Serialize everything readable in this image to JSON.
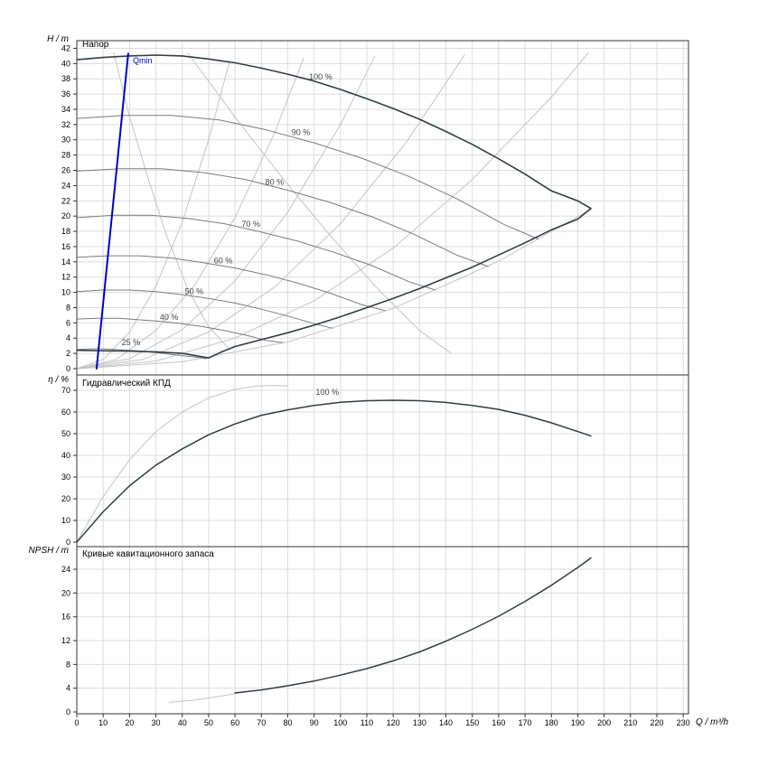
{
  "labels": {
    "qmin": "Qmin"
  },
  "colors": {
    "dark": "#2f3f46",
    "mid": "#7c7c7c",
    "light": "#c4c4c4",
    "blue": "#0000cc",
    "grid": "#dcdcdc",
    "axis": "#333333",
    "text": "#000000",
    "annotation": "#444444"
  },
  "xaxis": {
    "label": "Q / m³/h",
    "xlim": [
      0,
      232
    ],
    "tick_step": 10,
    "tick_max": 230
  },
  "chart_data": [
    {
      "type": "line",
      "title": "Напор",
      "ylabel": "H / m",
      "ylim": [
        0,
        43
      ],
      "yticks_step": 2,
      "yticks_max": 42,
      "grid": true,
      "series": [
        {
          "name": "iso-curve-1",
          "color": "light",
          "width": 1,
          "points": [
            [
              0,
              0
            ],
            [
              10,
              1.2
            ],
            [
              20,
              4.8
            ],
            [
              30,
              10.8
            ],
            [
              40,
              19.2
            ],
            [
              50,
              30.0
            ],
            [
              58,
              40.4
            ]
          ]
        },
        {
          "name": "iso-curve-2",
          "color": "light",
          "width": 1,
          "points": [
            [
              0,
              0
            ],
            [
              15,
              1.2
            ],
            [
              30,
              5.0
            ],
            [
              45,
              11.1
            ],
            [
              60,
              19.8
            ],
            [
              75,
              30.9
            ],
            [
              86,
              40.7
            ]
          ]
        },
        {
          "name": "iso-curve-3",
          "color": "light",
          "width": 1,
          "points": [
            [
              0,
              0
            ],
            [
              20,
              1.3
            ],
            [
              40,
              5.1
            ],
            [
              60,
              11.5
            ],
            [
              80,
              20.5
            ],
            [
              100,
              32.0
            ],
            [
              113,
              40.9
            ]
          ]
        },
        {
          "name": "iso-curve-4",
          "color": "light",
          "width": 1,
          "points": [
            [
              0,
              0
            ],
            [
              25,
              1.2
            ],
            [
              50,
              4.8
            ],
            [
              75,
              10.7
            ],
            [
              100,
              19.0
            ],
            [
              125,
              29.7
            ],
            [
              147,
              41.1
            ]
          ]
        },
        {
          "name": "iso-curve-5",
          "color": "light",
          "width": 1,
          "points": [
            [
              0,
              0
            ],
            [
              30,
              1.0
            ],
            [
              60,
              4.0
            ],
            [
              90,
              8.9
            ],
            [
              120,
              15.8
            ],
            [
              150,
              24.8
            ],
            [
              180,
              35.6
            ],
            [
              194,
              41.4
            ]
          ]
        },
        {
          "name": "iso-curve-6",
          "color": "light",
          "width": 1,
          "points": [
            [
              0,
              0
            ],
            [
              40,
              0.9
            ],
            [
              80,
              3.5
            ],
            [
              120,
              7.9
            ],
            [
              160,
              14.1
            ],
            [
              195,
              20.9
            ]
          ]
        },
        {
          "name": "descending-curve-1",
          "color": "light",
          "width": 1,
          "points": [
            [
              42,
              41.4
            ],
            [
              60,
              33
            ],
            [
              78,
              25
            ],
            [
              96,
              17.5
            ],
            [
              114,
              10.5
            ],
            [
              130,
              5
            ],
            [
              142,
              2
            ]
          ]
        },
        {
          "name": "descending-curve-2",
          "color": "light",
          "width": 1,
          "points": [
            [
              14,
              41.4
            ],
            [
              20,
              33
            ],
            [
              27,
              25
            ],
            [
              34,
              17.5
            ],
            [
              42,
              10.5
            ],
            [
              50,
              5.5
            ],
            [
              58,
              2.5
            ]
          ]
        },
        {
          "name": "speed-curve-90",
          "color": "mid",
          "width": 1,
          "points": [
            [
              0,
              32.8
            ],
            [
              18,
              33.2
            ],
            [
              36,
              33.2
            ],
            [
              54,
              32.6
            ],
            [
              72,
              31.3
            ],
            [
              90,
              29.6
            ],
            [
              108,
              27.6
            ],
            [
              126,
              25.2
            ],
            [
              144,
              22.3
            ],
            [
              162,
              18.9
            ],
            [
              175,
              17.0
            ]
          ]
        },
        {
          "name": "speed-curve-80",
          "color": "mid",
          "width": 1,
          "points": [
            [
              0,
              25.9
            ],
            [
              16,
              26.2
            ],
            [
              32,
              26.2
            ],
            [
              48,
              25.7
            ],
            [
              64,
              24.8
            ],
            [
              80,
              23.4
            ],
            [
              96,
              21.8
            ],
            [
              112,
              19.9
            ],
            [
              128,
              17.6
            ],
            [
              144,
              14.9
            ],
            [
              156,
              13.4
            ]
          ]
        },
        {
          "name": "speed-curve-70",
          "color": "mid",
          "width": 1,
          "points": [
            [
              0,
              19.8
            ],
            [
              14,
              20.1
            ],
            [
              28,
              20.1
            ],
            [
              42,
              19.7
            ],
            [
              56,
              19.0
            ],
            [
              70,
              17.9
            ],
            [
              84,
              16.7
            ],
            [
              98,
              15.2
            ],
            [
              112,
              13.5
            ],
            [
              126,
              11.4
            ],
            [
              136,
              10.3
            ]
          ]
        },
        {
          "name": "speed-curve-60",
          "color": "mid",
          "width": 1,
          "points": [
            [
              0,
              14.6
            ],
            [
              12,
              14.8
            ],
            [
              24,
              14.8
            ],
            [
              36,
              14.5
            ],
            [
              48,
              13.9
            ],
            [
              60,
              13.2
            ],
            [
              72,
              12.3
            ],
            [
              84,
              11.2
            ],
            [
              96,
              9.9
            ],
            [
              108,
              8.4
            ],
            [
              117,
              7.6
            ]
          ]
        },
        {
          "name": "speed-curve-50",
          "color": "mid",
          "width": 1,
          "points": [
            [
              0,
              10.1
            ],
            [
              10,
              10.3
            ],
            [
              20,
              10.3
            ],
            [
              30,
              10.1
            ],
            [
              40,
              9.7
            ],
            [
              50,
              9.2
            ],
            [
              60,
              8.6
            ],
            [
              70,
              7.8
            ],
            [
              80,
              6.9
            ],
            [
              90,
              5.9
            ],
            [
              97,
              5.3
            ]
          ]
        },
        {
          "name": "speed-curve-40",
          "color": "mid",
          "width": 1,
          "points": [
            [
              0,
              6.5
            ],
            [
              8,
              6.6
            ],
            [
              16,
              6.6
            ],
            [
              24,
              6.4
            ],
            [
              32,
              6.2
            ],
            [
              40,
              5.9
            ],
            [
              48,
              5.5
            ],
            [
              56,
              5.0
            ],
            [
              64,
              4.4
            ],
            [
              72,
              3.7
            ],
            [
              78,
              3.4
            ]
          ]
        },
        {
          "name": "speed-curve-25",
          "color": "mid",
          "width": 1,
          "points": [
            [
              0,
              2.5
            ],
            [
              5,
              2.6
            ],
            [
              10,
              2.6
            ],
            [
              15,
              2.5
            ],
            [
              20,
              2.4
            ],
            [
              25,
              2.3
            ],
            [
              30,
              2.1
            ],
            [
              35,
              1.9
            ],
            [
              40,
              1.7
            ],
            [
              45,
              1.5
            ],
            [
              49,
              1.3
            ]
          ]
        },
        {
          "name": "operating-envelope",
          "color": "dark",
          "width": 1.6,
          "points": [
            [
              0,
              40.5
            ],
            [
              10,
              40.8
            ],
            [
              20,
              41.0
            ],
            [
              30,
              41.1
            ],
            [
              40,
              41.0
            ],
            [
              50,
              40.6
            ],
            [
              60,
              40.1
            ],
            [
              70,
              39.4
            ],
            [
              80,
              38.6
            ],
            [
              90,
              37.7
            ],
            [
              100,
              36.6
            ],
            [
              110,
              35.4
            ],
            [
              120,
              34.1
            ],
            [
              130,
              32.7
            ],
            [
              140,
              31.1
            ],
            [
              150,
              29.4
            ],
            [
              160,
              27.5
            ],
            [
              170,
              25.5
            ],
            [
              180,
              23.3
            ],
            [
              190,
              22.0
            ],
            [
              195,
              21.0
            ],
            [
              190,
              19.6
            ],
            [
              180,
              18.2
            ],
            [
              170,
              16.5
            ],
            [
              160,
              14.9
            ],
            [
              150,
              13.3
            ],
            [
              140,
              11.9
            ],
            [
              130,
              10.5
            ],
            [
              120,
              9.2
            ],
            [
              110,
              8.0
            ],
            [
              100,
              6.8
            ],
            [
              90,
              5.7
            ],
            [
              80,
              4.7
            ],
            [
              70,
              3.8
            ],
            [
              60,
              2.9
            ],
            [
              55,
              2.2
            ],
            [
              50,
              1.4
            ],
            [
              45,
              1.7
            ],
            [
              40,
              2.0
            ],
            [
              30,
              2.2
            ],
            [
              20,
              2.3
            ],
            [
              10,
              2.35
            ],
            [
              0,
              2.4
            ]
          ]
        },
        {
          "name": "qmin-line",
          "color": "blue",
          "width": 2,
          "points": [
            [
              7.5,
              0
            ],
            [
              19.5,
              41.3
            ]
          ]
        }
      ],
      "annotations": [
        {
          "text": "100 %",
          "x": 92.5,
          "y": 37.9
        },
        {
          "text": "90 %",
          "x": 85,
          "y": 30.6
        },
        {
          "text": "80 %",
          "x": 75,
          "y": 24.1
        },
        {
          "text": "70 %",
          "x": 66,
          "y": 18.6
        },
        {
          "text": "60 %",
          "x": 55.5,
          "y": 13.8
        },
        {
          "text": "50 %",
          "x": 44.5,
          "y": 9.8
        },
        {
          "text": "40 %",
          "x": 35,
          "y": 6.4
        },
        {
          "text": "25 %",
          "x": 20.5,
          "y": 3.1
        }
      ]
    },
    {
      "type": "line",
      "title": "Гидравлический КПД",
      "ylabel": "η / %",
      "ylim": [
        0,
        75
      ],
      "yticks_step": 10,
      "yticks_max": 70,
      "grid": true,
      "series": [
        {
          "name": "efficiency-partload",
          "color": "light",
          "width": 1,
          "points": [
            [
              0,
              0
            ],
            [
              10,
              21
            ],
            [
              20,
              38
            ],
            [
              30,
              51
            ],
            [
              40,
              60
            ],
            [
              50,
              66.5
            ],
            [
              60,
              70.5
            ],
            [
              68,
              72
            ],
            [
              75,
              72.3
            ],
            [
              80,
              72
            ]
          ]
        },
        {
          "name": "efficiency-100",
          "color": "dark",
          "width": 1.5,
          "points": [
            [
              0,
              0
            ],
            [
              10,
              14
            ],
            [
              20,
              26
            ],
            [
              30,
              35.5
            ],
            [
              40,
              43
            ],
            [
              50,
              49.5
            ],
            [
              60,
              54.5
            ],
            [
              70,
              58.5
            ],
            [
              80,
              61
            ],
            [
              90,
              63
            ],
            [
              100,
              64.5
            ],
            [
              110,
              65.2
            ],
            [
              120,
              65.4
            ],
            [
              130,
              65.2
            ],
            [
              140,
              64.4
            ],
            [
              150,
              63
            ],
            [
              160,
              61.2
            ],
            [
              170,
              58.5
            ],
            [
              180,
              55
            ],
            [
              190,
              51
            ],
            [
              195,
              49
            ]
          ]
        }
      ],
      "annotations": [
        {
          "text": "100 %",
          "x": 95,
          "y": 68
        }
      ]
    },
    {
      "type": "line",
      "title": "Кривые кавитационного запаса",
      "ylabel": "NPSH / m",
      "ylim": [
        0,
        27.5
      ],
      "yticks_step": 4,
      "yticks_max": 24,
      "grid": true,
      "series": [
        {
          "name": "npsh-partload",
          "color": "light",
          "width": 1,
          "points": [
            [
              35,
              1.6
            ],
            [
              45,
              2.0
            ],
            [
              55,
              2.7
            ],
            [
              63,
              3.3
            ]
          ]
        },
        {
          "name": "npsh-100",
          "color": "dark",
          "width": 1.5,
          "points": [
            [
              60,
              3.2
            ],
            [
              70,
              3.7
            ],
            [
              80,
              4.4
            ],
            [
              90,
              5.2
            ],
            [
              100,
              6.2
            ],
            [
              110,
              7.3
            ],
            [
              120,
              8.6
            ],
            [
              130,
              10.1
            ],
            [
              140,
              11.9
            ],
            [
              150,
              13.9
            ],
            [
              160,
              16.1
            ],
            [
              170,
              18.6
            ],
            [
              180,
              21.3
            ],
            [
              190,
              24.3
            ],
            [
              195,
              25.9
            ]
          ]
        }
      ],
      "annotations": []
    }
  ]
}
